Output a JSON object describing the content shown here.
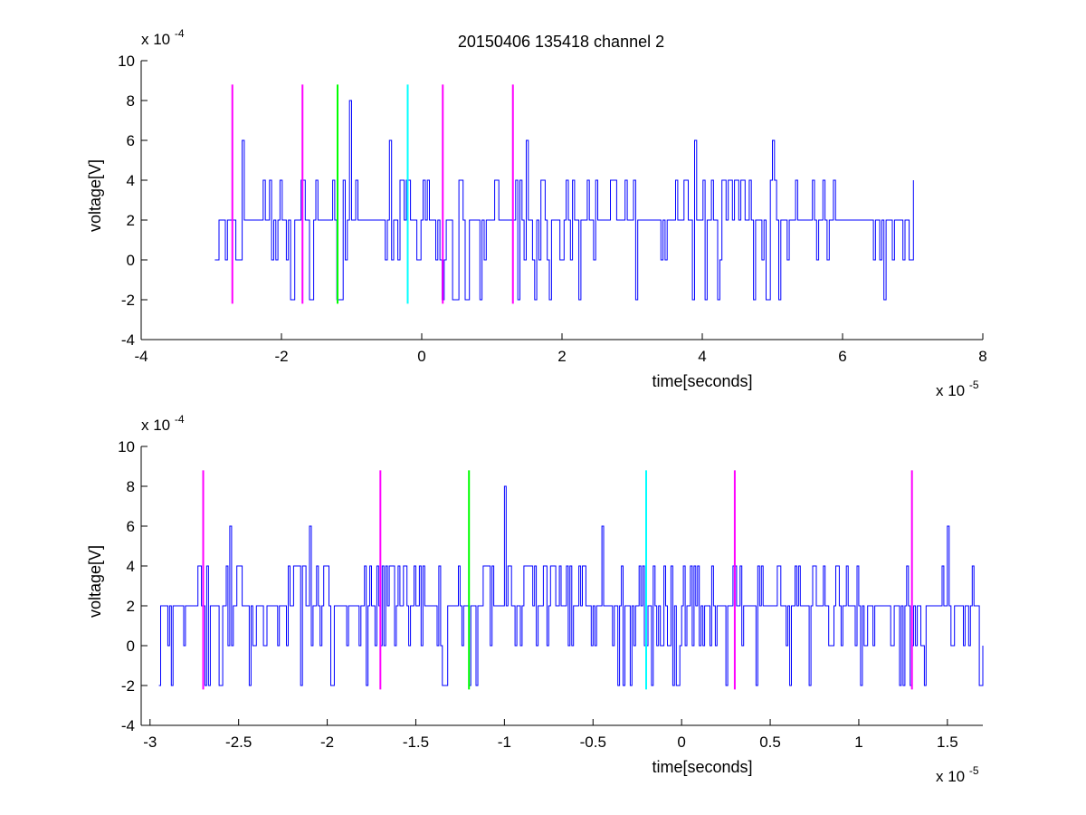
{
  "figure": {
    "title": "20150406 135418 channel 2"
  },
  "chart_data": [
    {
      "type": "line",
      "title": "20150406 135418 channel 2",
      "xlabel": "time[seconds]",
      "ylabel": "voltage[V]",
      "x_scale_exponent": "-5",
      "y_scale_exponent": "-4",
      "x_multiplier_label": "x 10",
      "y_multiplier_label": "x 10",
      "xlim": [
        -4,
        8
      ],
      "ylim": [
        -4,
        10
      ],
      "xticks": [
        -4,
        -2,
        0,
        2,
        4,
        6,
        8
      ],
      "xtick_labels": [
        "-4",
        "-2",
        "0",
        "2",
        "4",
        "6",
        "8"
      ],
      "yticks": [
        -4,
        -2,
        0,
        2,
        4,
        6,
        8,
        10
      ],
      "ytick_labels": [
        "-4",
        "-2",
        "0",
        "2",
        "4",
        "6",
        "8",
        "10"
      ],
      "grid": false,
      "signal": {
        "color": "#0000ff",
        "x_start": -2.95,
        "x_end": 7.03,
        "levels": [
          -2,
          0,
          2,
          4,
          6,
          8
        ],
        "peaks": [
          {
            "x": -1.02,
            "y": 8
          },
          {
            "x": 3.9,
            "y": 6
          },
          {
            "x": 5.0,
            "y": 6
          },
          {
            "x": -2.55,
            "y": 6
          },
          {
            "x": -0.45,
            "y": 6
          },
          {
            "x": 1.5,
            "y": 6
          }
        ]
      },
      "markers": [
        {
          "x": -2.7,
          "color": "#ff00ff",
          "y_from": -2.2,
          "y_to": 8.8
        },
        {
          "x": -1.7,
          "color": "#ff00ff",
          "y_from": -2.2,
          "y_to": 8.8
        },
        {
          "x": -1.2,
          "color": "#00ff00",
          "y_from": -2.2,
          "y_to": 8.8
        },
        {
          "x": -0.2,
          "color": "#00ffff",
          "y_from": -2.2,
          "y_to": 8.8
        },
        {
          "x": 0.3,
          "color": "#ff00ff",
          "y_from": -2.2,
          "y_to": 8.8
        },
        {
          "x": 1.3,
          "color": "#ff00ff",
          "y_from": -2.2,
          "y_to": 8.8
        }
      ]
    },
    {
      "type": "line",
      "title": "",
      "xlabel": "time[seconds]",
      "ylabel": "voltage[V]",
      "x_scale_exponent": "-5",
      "y_scale_exponent": "-4",
      "x_multiplier_label": "x 10",
      "y_multiplier_label": "x 10",
      "xlim": [
        -3.05,
        1.7
      ],
      "ylim": [
        -4,
        10
      ],
      "xticks": [
        -3,
        -2.5,
        -2,
        -1.5,
        -1,
        -0.5,
        0,
        0.5,
        1,
        1.5
      ],
      "xtick_labels": [
        "-3",
        "-2.5",
        "-2",
        "-1.5",
        "-1",
        "-0.5",
        "0",
        "0.5",
        "1",
        "1.5"
      ],
      "yticks": [
        -4,
        -2,
        0,
        2,
        4,
        6,
        8,
        10
      ],
      "ytick_labels": [
        "-4",
        "-2",
        "0",
        "2",
        "4",
        "6",
        "8",
        "10"
      ],
      "grid": false,
      "signal": {
        "color": "#0000ff",
        "x_start": -2.95,
        "x_end": 1.7,
        "levels": [
          -2,
          0,
          2,
          4,
          6,
          8
        ],
        "peaks": [
          {
            "x": -1.0,
            "y": 8
          },
          {
            "x": -2.55,
            "y": 6
          },
          {
            "x": -2.1,
            "y": 6
          },
          {
            "x": -0.45,
            "y": 6
          },
          {
            "x": 1.5,
            "y": 6
          },
          {
            "x": -2.88,
            "y": -2
          },
          {
            "x": -1.78,
            "y": -2
          },
          {
            "x": -1.2,
            "y": -2
          },
          {
            "x": -0.05,
            "y": -2
          },
          {
            "x": 1.23,
            "y": -2
          }
        ]
      },
      "markers": [
        {
          "x": -2.7,
          "color": "#ff00ff",
          "y_from": -2.2,
          "y_to": 8.8
        },
        {
          "x": -1.7,
          "color": "#ff00ff",
          "y_from": -2.2,
          "y_to": 8.8
        },
        {
          "x": -1.2,
          "color": "#00ff00",
          "y_from": -2.2,
          "y_to": 8.8
        },
        {
          "x": -0.2,
          "color": "#00ffff",
          "y_from": -2.2,
          "y_to": 8.8
        },
        {
          "x": 0.3,
          "color": "#ff00ff",
          "y_from": -2.2,
          "y_to": 8.8
        },
        {
          "x": 1.3,
          "color": "#ff00ff",
          "y_from": -2.2,
          "y_to": 8.8
        }
      ]
    }
  ]
}
